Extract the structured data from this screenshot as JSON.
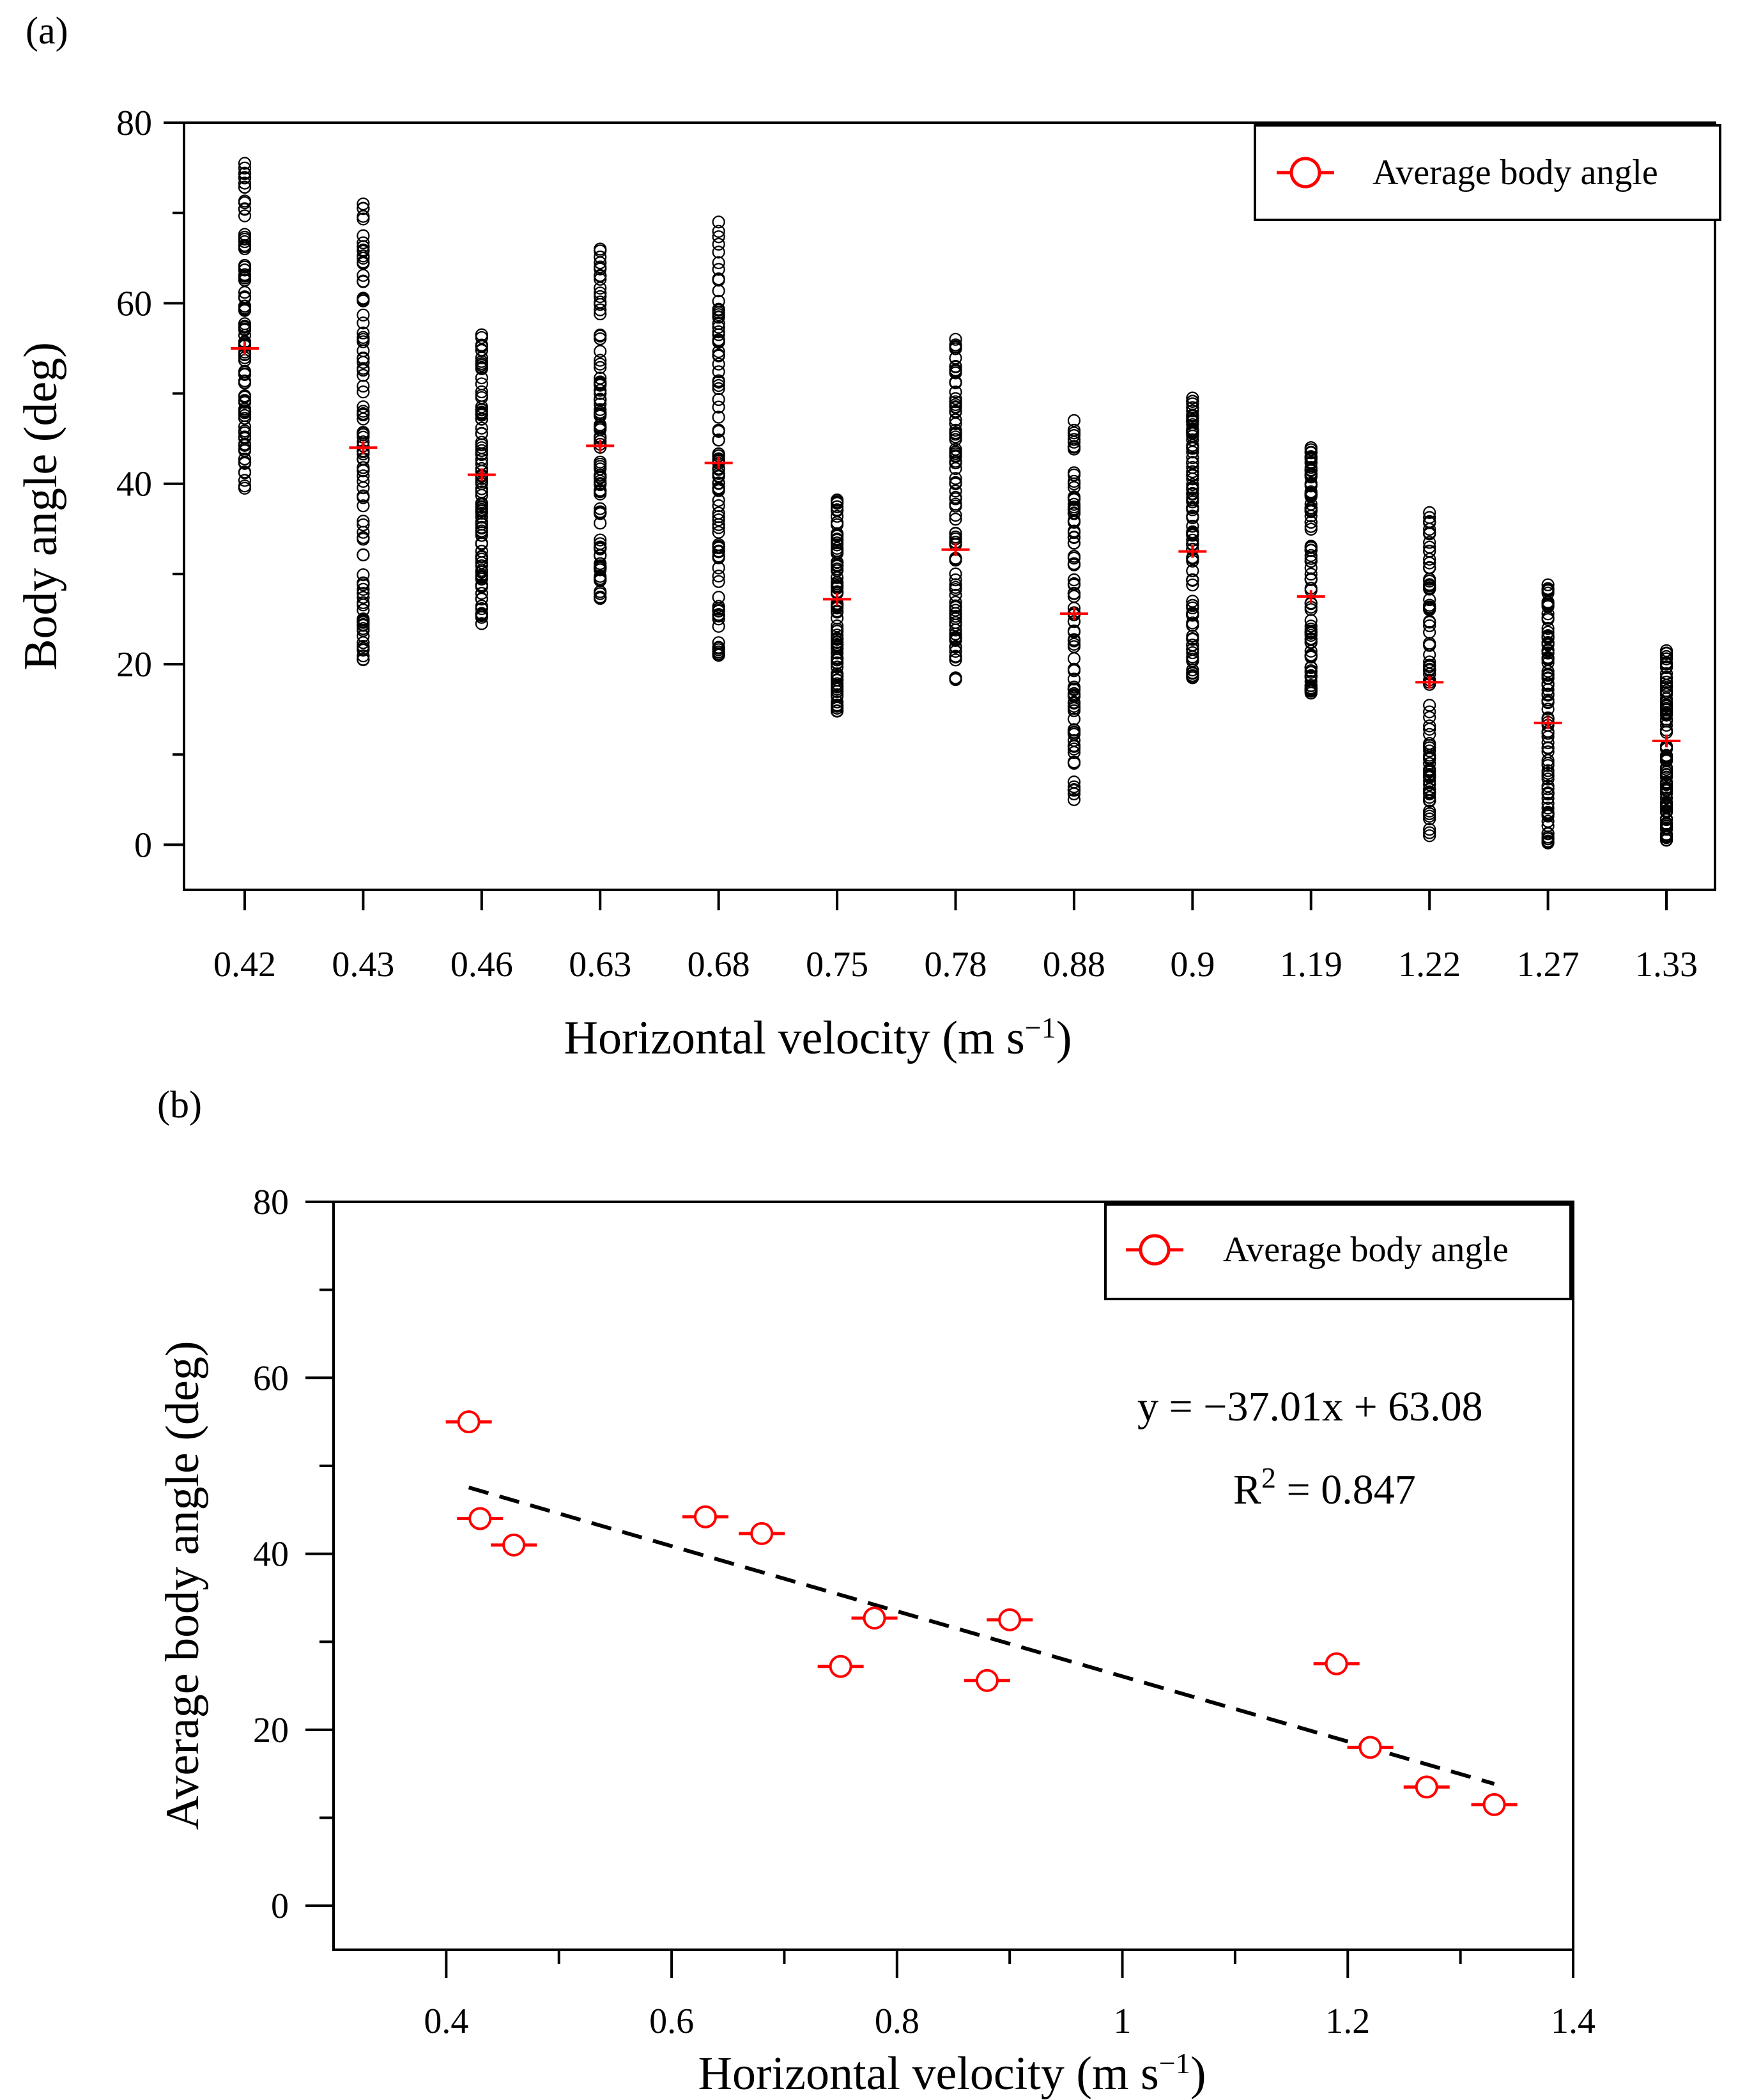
{
  "chart_data": [
    {
      "type": "scatter",
      "panel_label": "(a)",
      "xlabel_main": "Horizontal velocity (m s",
      "xlabel_sup": "−1",
      "xlabel_end": ")",
      "ylabel": "Body angle (deg)",
      "categories": [
        "0.42",
        "0.43",
        "0.46",
        "0.63",
        "0.68",
        "0.75",
        "0.78",
        "0.88",
        "0.9",
        "1.19",
        "1.22",
        "1.27",
        "1.33"
      ],
      "ylim": [
        -5,
        80
      ],
      "yticks": [
        "0",
        "20",
        "40",
        "60",
        "80"
      ],
      "raw_ranges": [
        [
          39.5,
          75.5
        ],
        [
          20.5,
          71
        ],
        [
          24.5,
          56.5
        ],
        [
          27.3,
          66
        ],
        [
          21,
          69
        ],
        [
          14.8,
          38.2
        ],
        [
          18.3,
          56
        ],
        [
          5,
          47
        ],
        [
          18.5,
          49.5
        ],
        [
          16.8,
          44
        ],
        [
          1,
          36.8
        ],
        [
          0.2,
          28.8
        ],
        [
          0.5,
          21.5
        ]
      ],
      "series": [
        {
          "name": "Average body angle",
          "color": "#ff0000",
          "values": [
            55,
            44,
            41,
            44.2,
            42.3,
            27.2,
            32.7,
            25.6,
            32.5,
            27.5,
            18,
            13.5,
            11.5
          ]
        }
      ],
      "legend_label": "Average body angle",
      "legend_position": "top-right"
    },
    {
      "type": "scatter",
      "panel_label": "(b)",
      "xlabel_main": "Horizontal velocity (m s",
      "xlabel_sup": "−1",
      "xlabel_end": ")",
      "ylabel": "Average body angle (deg)",
      "xlim": [
        0.3,
        1.4
      ],
      "ylim": [
        -5,
        80
      ],
      "xticks": [
        "0.4",
        "0.6",
        "0.8",
        "1",
        "1.2",
        "1.4"
      ],
      "yticks": [
        "0",
        "20",
        "40",
        "60",
        "80"
      ],
      "series": [
        {
          "name": "Average body angle",
          "color": "#ff0000",
          "x": [
            0.42,
            0.43,
            0.46,
            0.63,
            0.68,
            0.75,
            0.78,
            0.88,
            0.9,
            1.19,
            1.22,
            1.27,
            1.33
          ],
          "y": [
            55,
            44,
            41,
            44.2,
            42.3,
            27.2,
            32.7,
            25.6,
            32.5,
            27.5,
            18,
            13.5,
            11.5
          ]
        }
      ],
      "fit": {
        "slope": -37.01,
        "intercept": 63.08,
        "x_range": [
          0.42,
          1.33
        ]
      },
      "equation_text": "y = −37.01x + 63.08",
      "r2_main": "R",
      "r2_sup": "2",
      "r2_value": " = 0.847",
      "legend_label": "Average body angle",
      "legend_position": "top-right"
    }
  ]
}
